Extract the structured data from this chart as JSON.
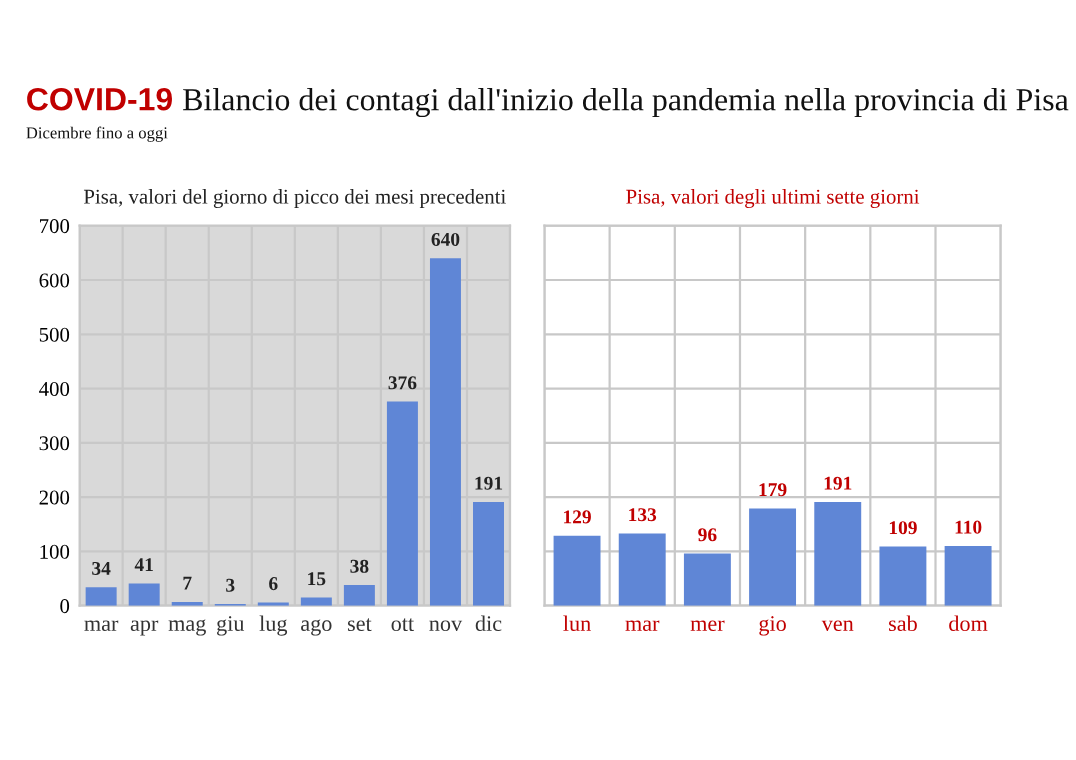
{
  "chart_data": [
    {
      "type": "bar",
      "title": "Pisa, valori del giorno di picco dei mesi precedenti",
      "annotations": [
        "COVID-19",
        "Bilancio dei contagi dall'inizio della pandemia nella provincia di Pisa",
        "Dicembre fino a oggi"
      ],
      "categories": [
        "mar",
        "apr",
        "mag",
        "giu",
        "lug",
        "ago",
        "set",
        "ott",
        "nov",
        "dic"
      ],
      "values": [
        34,
        41,
        7,
        3,
        6,
        15,
        38,
        376,
        640,
        191
      ],
      "color": "#5f86d6",
      "ylim": [
        0,
        700
      ],
      "yticks": [
        0,
        100,
        200,
        300,
        400,
        500,
        600,
        700
      ],
      "grid": true,
      "data_labels": true
    },
    {
      "type": "bar",
      "title": "Pisa, valori degli ultimi sette giorni",
      "categories": [
        "lun",
        "mar",
        "mer",
        "gio",
        "ven",
        "sab",
        "dom"
      ],
      "values": [
        129,
        133,
        96,
        179,
        191,
        109,
        110
      ],
      "color": "#5f86d6",
      "ylim": [
        0,
        700
      ],
      "yticks": [
        0,
        100,
        200,
        300,
        400,
        500,
        600,
        700
      ],
      "grid": true,
      "data_labels": true,
      "tick_labels": "x"
    }
  ]
}
